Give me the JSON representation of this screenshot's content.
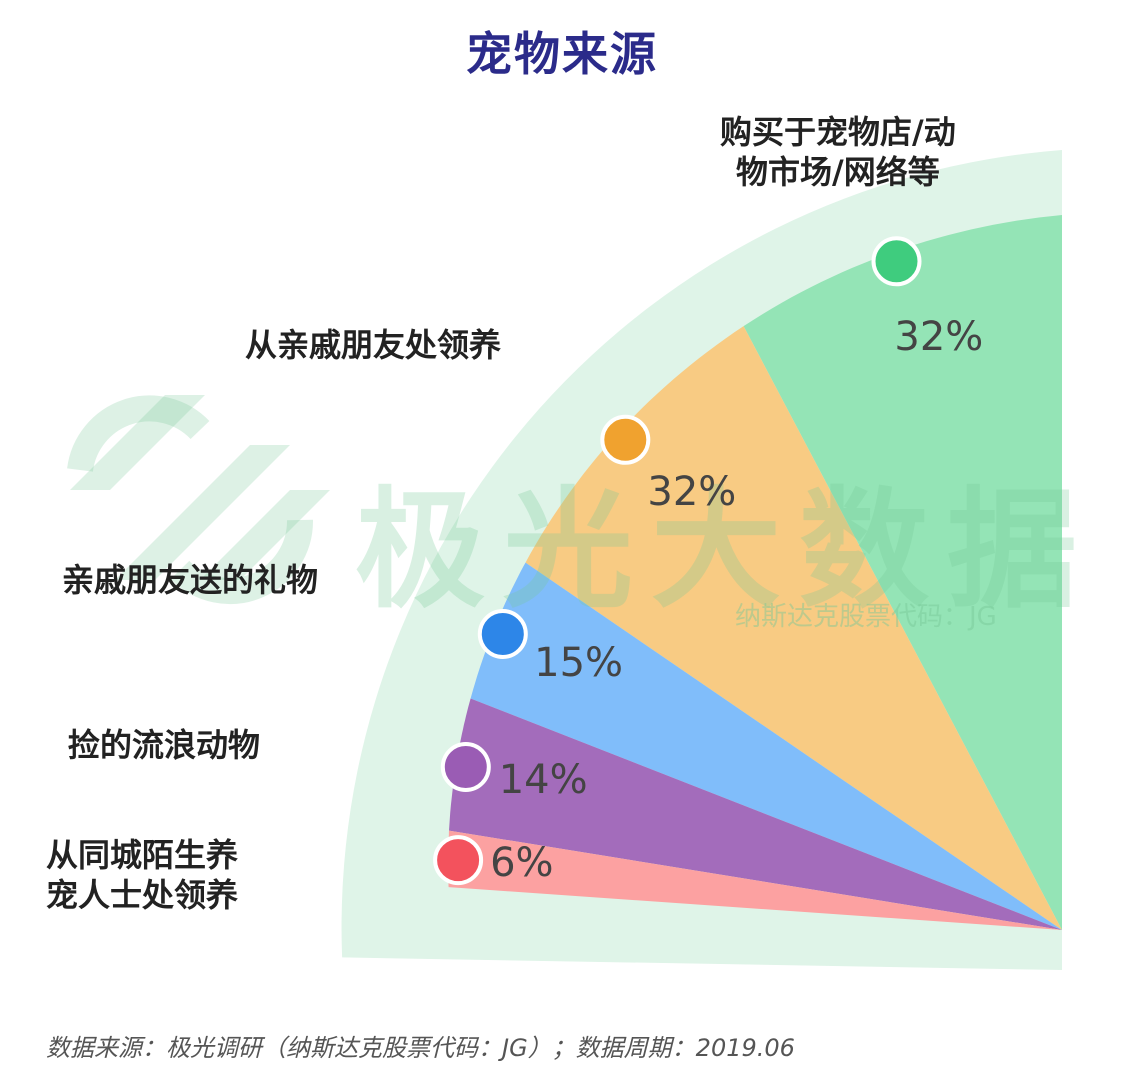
{
  "chart_data": {
    "type": "pie",
    "title": "宠物来源",
    "categories": [
      "购买于宠物店/动物市场/网络等",
      "从亲戚朋友处领养",
      "亲戚朋友送的礼物",
      "捡的流浪动物",
      "从同城陌生养宠人士处领养"
    ],
    "label_lines": [
      [
        "购买于宠物店/动",
        "物市场/网络等"
      ],
      [
        "从亲戚朋友处领养"
      ],
      [
        "亲戚朋友送的礼物"
      ],
      [
        "捡的流浪动物"
      ],
      [
        "从同城陌生养",
        "宠人士处领养"
      ]
    ],
    "values": [
      32,
      32,
      15,
      14,
      6
    ],
    "value_labels": [
      "32%",
      "32%",
      "15%",
      "14%",
      "6%"
    ],
    "colors": [
      "#94e4b6",
      "#f8cb83",
      "#80bdfa",
      "#a36cbb",
      "#fca1a1"
    ],
    "dot_colors": [
      "#3fcc7e",
      "#f0a22f",
      "#2d86e8",
      "#9a5cb4",
      "#f3525d"
    ],
    "background_band_color": "#dff4e8"
  },
  "watermark": {
    "logo_icon": "jiguang-logo-icon",
    "text": "极光大数据",
    "subtext": "纳斯达克股票代码：JG"
  },
  "source_note": "数据来源：极光调研（纳斯达克股票代码：JG）；数据周期：2019.06"
}
